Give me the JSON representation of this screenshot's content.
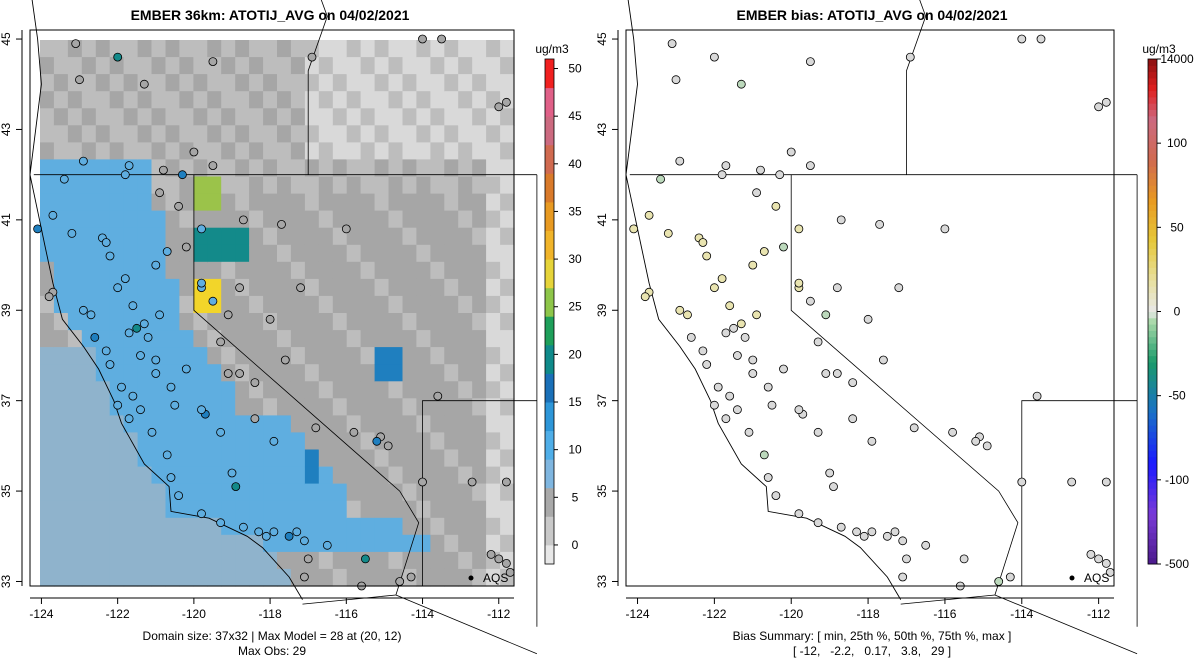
{
  "chart_data": [
    {
      "type": "heatmap",
      "title": "EMBER 36km: ATOTIJ_AVG on 04/02/2021",
      "xlabel": "",
      "ylabel": "",
      "xlim": [
        -124.3,
        -111.6
      ],
      "ylim": [
        32.9,
        45.2
      ],
      "x_ticks": [
        "-124",
        "-122",
        "-120",
        "-118",
        "-116",
        "-114",
        "-112"
      ],
      "y_ticks": [
        "33",
        "35",
        "37",
        "39",
        "41",
        "43",
        "45"
      ],
      "colorbar": {
        "unit": "ug/m3",
        "range": [
          -2,
          51
        ],
        "tick_labels": [
          "0",
          "5",
          "10",
          "15",
          "20",
          "25",
          "30",
          "35",
          "40",
          "45",
          "50"
        ],
        "tick_values": [
          0,
          5,
          10,
          15,
          20,
          25,
          30,
          35,
          40,
          45,
          50
        ]
      },
      "grid_note": "Domain size: 37x32 | Max Model = 28 at (20, 12)",
      "obs_note": "Max Obs: 29",
      "marker_label": "AQS",
      "hotspots": [
        {
          "lon": -119.7,
          "lat": 41.5,
          "value": 25
        },
        {
          "lon": -119.7,
          "lat": 39.3,
          "value": 28
        },
        {
          "lon": -119.5,
          "lat": 40.5,
          "value": 19
        },
        {
          "lon": -118.9,
          "lat": 40.3,
          "value": 20
        },
        {
          "lon": -116.9,
          "lat": 35.6,
          "value": 18
        },
        {
          "lon": -114.8,
          "lat": 37.7,
          "value": 16
        }
      ]
    },
    {
      "type": "scatter",
      "title": "EMBER bias: ATOTIJ_AVG on 04/02/2021",
      "xlabel": "",
      "ylabel": "",
      "xlim": [
        -124.3,
        -111.6
      ],
      "ylim": [
        32.9,
        45.2
      ],
      "x_ticks": [
        "-124",
        "-122",
        "-120",
        "-118",
        "-116",
        "-114",
        "-112"
      ],
      "y_ticks": [
        "33",
        "35",
        "37",
        "39",
        "41",
        "43",
        "45"
      ],
      "colorbar": {
        "unit": "ug/m3",
        "tick_labels": [
          "14000",
          "100",
          "50",
          "0",
          "-50",
          "-100",
          "-500"
        ]
      },
      "summary_line1": "Bias Summary: [ min, 25th %, 50th %, 75th %, max ]",
      "summary_line2": "[ -12,   -2.2,   0.17,   3.8,   29 ]",
      "bias_summary": {
        "min": -12,
        "p25": -2.2,
        "p50": 0.17,
        "p75": 3.8,
        "max": 29
      },
      "marker_label": "AQS"
    }
  ]
}
